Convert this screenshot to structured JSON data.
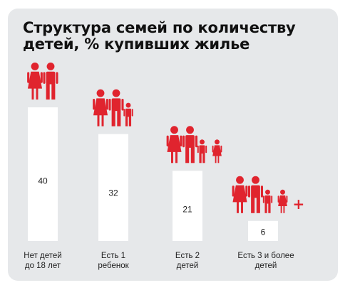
{
  "colors": {
    "background": "#e6e8ea",
    "bar": "#ffffff",
    "figure": "#e0242e",
    "text": "#222222"
  },
  "chart_data": {
    "type": "bar",
    "title": "Структура семей по количеству детей, % купивших жилье",
    "categories": [
      {
        "line1": "Нет детей",
        "line2": "до 18 лет"
      },
      {
        "line1": "Есть 1",
        "line2": "ребенок"
      },
      {
        "line1": "Есть 2",
        "line2": "детей"
      },
      {
        "line1": "Есть 3 и более",
        "line2": "детей"
      }
    ],
    "values": [
      40,
      32,
      21,
      6
    ],
    "value_labels": [
      "40",
      "32",
      "21",
      "6"
    ],
    "family_icons": [
      {
        "adults": 2,
        "children": 0,
        "plus": ""
      },
      {
        "adults": 2,
        "children": 1,
        "plus": ""
      },
      {
        "adults": 2,
        "children": 2,
        "plus": ""
      },
      {
        "adults": 2,
        "children": 2,
        "plus": "+"
      }
    ],
    "grid": false,
    "legend": "none"
  }
}
